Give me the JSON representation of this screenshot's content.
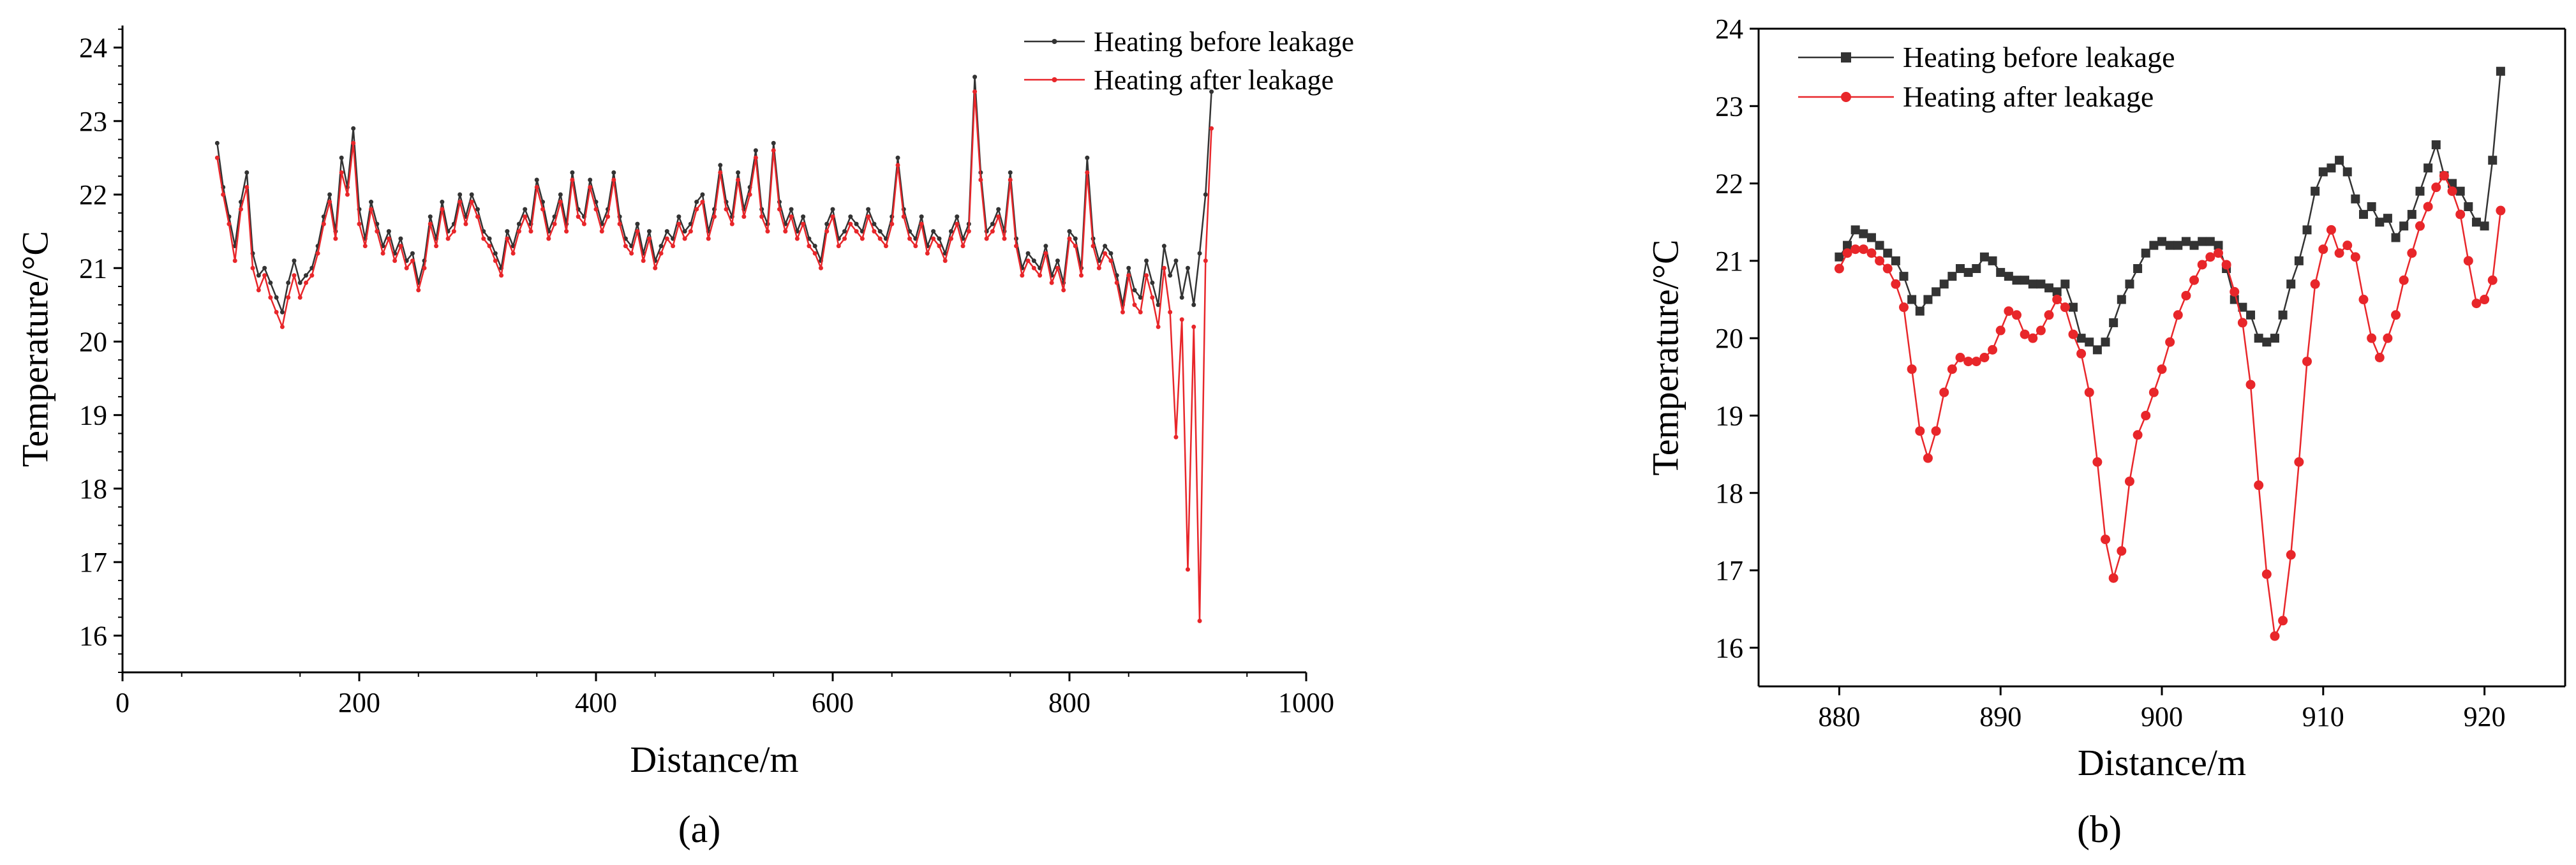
{
  "chart_data": [
    {
      "type": "line",
      "panel_label": "(a)",
      "xlabel": "Distance/m",
      "ylabel": "Temperature/°C",
      "xlim": [
        0,
        1000
      ],
      "ylim": [
        15.5,
        24.3
      ],
      "xticks": [
        0,
        200,
        400,
        600,
        800,
        1000
      ],
      "yticks": [
        16,
        17,
        18,
        19,
        20,
        21,
        22,
        23,
        24
      ],
      "legend_position": "top-right",
      "grid": false,
      "series": [
        {
          "name": "Heating before leakage",
          "color": "#333333",
          "x": [
            80,
            85,
            90,
            95,
            100,
            105,
            110,
            115,
            120,
            125,
            130,
            135,
            140,
            145,
            150,
            155,
            160,
            165,
            170,
            175,
            180,
            185,
            190,
            195,
            200,
            205,
            210,
            215,
            220,
            225,
            230,
            235,
            240,
            245,
            250,
            255,
            260,
            265,
            270,
            275,
            280,
            285,
            290,
            295,
            300,
            305,
            310,
            315,
            320,
            325,
            330,
            335,
            340,
            345,
            350,
            355,
            360,
            365,
            370,
            375,
            380,
            385,
            390,
            395,
            400,
            405,
            410,
            415,
            420,
            425,
            430,
            435,
            440,
            445,
            450,
            455,
            460,
            465,
            470,
            475,
            480,
            485,
            490,
            495,
            500,
            505,
            510,
            515,
            520,
            525,
            530,
            535,
            540,
            545,
            550,
            555,
            560,
            565,
            570,
            575,
            580,
            585,
            590,
            595,
            600,
            605,
            610,
            615,
            620,
            625,
            630,
            635,
            640,
            645,
            650,
            655,
            660,
            665,
            670,
            675,
            680,
            685,
            690,
            695,
            700,
            705,
            710,
            715,
            720,
            725,
            730,
            735,
            740,
            745,
            750,
            755,
            760,
            765,
            770,
            775,
            780,
            785,
            790,
            795,
            800,
            805,
            810,
            815,
            820,
            825,
            830,
            835,
            840,
            845,
            850,
            855,
            860,
            865,
            870,
            875,
            880,
            885,
            890,
            895,
            900,
            905,
            910,
            915,
            920
          ],
          "values": [
            22.7,
            22.1,
            21.7,
            21.3,
            21.9,
            22.3,
            21.2,
            20.9,
            21.0,
            20.8,
            20.6,
            20.4,
            20.8,
            21.1,
            20.8,
            20.9,
            21.0,
            21.3,
            21.7,
            22.0,
            21.5,
            22.5,
            22.1,
            22.9,
            21.8,
            21.4,
            21.9,
            21.6,
            21.3,
            21.5,
            21.2,
            21.4,
            21.1,
            21.2,
            20.8,
            21.1,
            21.7,
            21.4,
            21.9,
            21.5,
            21.6,
            22.0,
            21.7,
            22.0,
            21.8,
            21.5,
            21.4,
            21.2,
            21.0,
            21.5,
            21.3,
            21.6,
            21.8,
            21.6,
            22.2,
            21.9,
            21.5,
            21.7,
            22.0,
            21.6,
            22.3,
            21.8,
            21.7,
            22.2,
            21.9,
            21.6,
            21.8,
            22.3,
            21.7,
            21.4,
            21.3,
            21.6,
            21.2,
            21.5,
            21.1,
            21.3,
            21.5,
            21.4,
            21.7,
            21.5,
            21.6,
            21.9,
            22.0,
            21.5,
            21.8,
            22.4,
            21.9,
            21.7,
            22.3,
            21.8,
            22.1,
            22.6,
            21.8,
            21.6,
            22.7,
            21.9,
            21.6,
            21.8,
            21.5,
            21.7,
            21.4,
            21.3,
            21.1,
            21.6,
            21.8,
            21.4,
            21.5,
            21.7,
            21.6,
            21.5,
            21.8,
            21.6,
            21.5,
            21.4,
            21.7,
            22.5,
            21.8,
            21.5,
            21.4,
            21.7,
            21.3,
            21.5,
            21.4,
            21.2,
            21.5,
            21.7,
            21.4,
            21.6,
            23.6,
            22.3,
            21.5,
            21.6,
            21.8,
            21.5,
            22.3,
            21.4,
            21.0,
            21.2,
            21.1,
            21.0,
            21.3,
            20.9,
            21.1,
            20.8,
            21.5,
            21.4,
            21.0,
            22.5,
            21.4,
            21.1,
            21.3,
            21.2,
            20.9,
            20.5,
            21.0,
            20.7,
            20.6,
            21.1,
            20.8,
            20.5,
            21.3,
            20.9,
            21.1,
            20.6,
            21.0,
            20.5,
            21.2,
            22.0,
            23.4
          ]
        },
        {
          "name": "Heating after leakage",
          "color": "#e8262a",
          "x": [
            80,
            85,
            90,
            95,
            100,
            105,
            110,
            115,
            120,
            125,
            130,
            135,
            140,
            145,
            150,
            155,
            160,
            165,
            170,
            175,
            180,
            185,
            190,
            195,
            200,
            205,
            210,
            215,
            220,
            225,
            230,
            235,
            240,
            245,
            250,
            255,
            260,
            265,
            270,
            275,
            280,
            285,
            290,
            295,
            300,
            305,
            310,
            315,
            320,
            325,
            330,
            335,
            340,
            345,
            350,
            355,
            360,
            365,
            370,
            375,
            380,
            385,
            390,
            395,
            400,
            405,
            410,
            415,
            420,
            425,
            430,
            435,
            440,
            445,
            450,
            455,
            460,
            465,
            470,
            475,
            480,
            485,
            490,
            495,
            500,
            505,
            510,
            515,
            520,
            525,
            530,
            535,
            540,
            545,
            550,
            555,
            560,
            565,
            570,
            575,
            580,
            585,
            590,
            595,
            600,
            605,
            610,
            615,
            620,
            625,
            630,
            635,
            640,
            645,
            650,
            655,
            660,
            665,
            670,
            675,
            680,
            685,
            690,
            695,
            700,
            705,
            710,
            715,
            720,
            725,
            730,
            735,
            740,
            745,
            750,
            755,
            760,
            765,
            770,
            775,
            780,
            785,
            790,
            795,
            800,
            805,
            810,
            815,
            820,
            825,
            830,
            835,
            840,
            845,
            850,
            855,
            860,
            865,
            870,
            875,
            880,
            885,
            890,
            895,
            900,
            905,
            910,
            915,
            920
          ],
          "values": [
            22.5,
            22.0,
            21.6,
            21.1,
            21.8,
            22.1,
            21.0,
            20.7,
            20.9,
            20.6,
            20.4,
            20.2,
            20.6,
            20.9,
            20.6,
            20.8,
            20.9,
            21.2,
            21.6,
            21.9,
            21.4,
            22.3,
            22.0,
            22.7,
            21.6,
            21.3,
            21.8,
            21.5,
            21.2,
            21.4,
            21.1,
            21.3,
            21.0,
            21.1,
            20.7,
            21.0,
            21.6,
            21.3,
            21.8,
            21.4,
            21.5,
            21.9,
            21.6,
            21.9,
            21.7,
            21.4,
            21.3,
            21.1,
            20.9,
            21.4,
            21.2,
            21.5,
            21.7,
            21.5,
            22.1,
            21.8,
            21.4,
            21.6,
            21.9,
            21.5,
            22.2,
            21.7,
            21.6,
            22.1,
            21.8,
            21.5,
            21.7,
            22.2,
            21.6,
            21.3,
            21.2,
            21.5,
            21.1,
            21.4,
            21.0,
            21.2,
            21.4,
            21.3,
            21.6,
            21.4,
            21.5,
            21.8,
            21.9,
            21.4,
            21.7,
            22.3,
            21.8,
            21.6,
            22.2,
            21.7,
            22.0,
            22.5,
            21.7,
            21.5,
            22.6,
            21.8,
            21.5,
            21.7,
            21.4,
            21.6,
            21.3,
            21.2,
            21.0,
            21.5,
            21.7,
            21.3,
            21.4,
            21.6,
            21.5,
            21.4,
            21.7,
            21.5,
            21.4,
            21.3,
            21.6,
            22.4,
            21.7,
            21.4,
            21.3,
            21.6,
            21.2,
            21.4,
            21.3,
            21.1,
            21.4,
            21.6,
            21.3,
            21.5,
            23.4,
            22.2,
            21.4,
            21.5,
            21.7,
            21.4,
            22.2,
            21.3,
            20.9,
            21.1,
            21.0,
            20.9,
            21.2,
            20.8,
            21.0,
            20.7,
            21.4,
            21.3,
            20.9,
            22.3,
            21.3,
            21.0,
            21.2,
            21.1,
            20.8,
            20.4,
            20.9,
            20.5,
            20.4,
            20.9,
            20.6,
            20.2,
            21.0,
            20.4,
            18.7,
            20.3,
            16.9,
            20.2,
            16.2,
            21.1,
            22.9
          ]
        }
      ]
    },
    {
      "type": "line",
      "panel_label": "(b)",
      "xlabel": "Distance/m",
      "ylabel": "Temperature/°C",
      "xlim": [
        875,
        925
      ],
      "ylim": [
        15.5,
        24
      ],
      "xticks": [
        880,
        890,
        900,
        910,
        920
      ],
      "yticks": [
        16,
        17,
        18,
        19,
        20,
        21,
        22,
        23,
        24
      ],
      "legend_position": "top-left",
      "grid": false,
      "series": [
        {
          "name": "Heating before leakage",
          "color": "#333333",
          "x": [
            880,
            880.5,
            881,
            881.5,
            882,
            882.5,
            883,
            883.5,
            884,
            884.5,
            885,
            885.5,
            886,
            886.5,
            887,
            887.5,
            888,
            888.5,
            889,
            889.5,
            890,
            890.5,
            891,
            891.5,
            892,
            892.5,
            893,
            893.5,
            894,
            894.5,
            895,
            895.5,
            896,
            896.5,
            897,
            897.5,
            898,
            898.5,
            899,
            899.5,
            900,
            900.5,
            901,
            901.5,
            902,
            902.5,
            903,
            903.5,
            904,
            904.5,
            905,
            905.5,
            906,
            906.5,
            907,
            907.5,
            908,
            908.5,
            909,
            909.5,
            910,
            910.5,
            911,
            911.5,
            912,
            912.5,
            913,
            913.5,
            914,
            914.5,
            915,
            915.5,
            916,
            916.5,
            917,
            917.5,
            918,
            918.5,
            919,
            919.5,
            920,
            920.5,
            921
          ],
          "values": [
            21.05,
            21.2,
            21.4,
            21.35,
            21.3,
            21.2,
            21.1,
            21.0,
            20.8,
            20.5,
            20.35,
            20.5,
            20.6,
            20.7,
            20.8,
            20.9,
            20.85,
            20.9,
            21.05,
            21.0,
            20.85,
            20.8,
            20.75,
            20.75,
            20.7,
            20.7,
            20.65,
            20.6,
            20.7,
            20.4,
            20.0,
            19.95,
            19.85,
            19.95,
            20.2,
            20.5,
            20.7,
            20.9,
            21.1,
            21.2,
            21.25,
            21.2,
            21.2,
            21.25,
            21.2,
            21.25,
            21.25,
            21.2,
            20.9,
            20.5,
            20.4,
            20.3,
            20.0,
            19.95,
            20.0,
            20.3,
            20.7,
            21.0,
            21.4,
            21.9,
            22.15,
            22.2,
            22.3,
            22.15,
            21.8,
            21.6,
            21.7,
            21.5,
            21.55,
            21.3,
            21.45,
            21.6,
            21.9,
            22.2,
            22.5,
            22.1,
            22.0,
            21.9,
            21.7,
            21.5,
            21.45,
            22.3,
            23.45
          ]
        },
        {
          "name": "Heating after leakage",
          "color": "#e8262a",
          "x": [
            880,
            880.5,
            881,
            881.5,
            882,
            882.5,
            883,
            883.5,
            884,
            884.5,
            885,
            885.5,
            886,
            886.5,
            887,
            887.5,
            888,
            888.5,
            889,
            889.5,
            890,
            890.5,
            891,
            891.5,
            892,
            892.5,
            893,
            893.5,
            894,
            894.5,
            895,
            895.5,
            896,
            896.5,
            897,
            897.5,
            898,
            898.5,
            899,
            899.5,
            900,
            900.5,
            901,
            901.5,
            902,
            902.5,
            903,
            903.5,
            904,
            904.5,
            905,
            905.5,
            906,
            906.5,
            907,
            907.5,
            908,
            908.5,
            909,
            909.5,
            910,
            910.5,
            911,
            911.5,
            912,
            912.5,
            913,
            913.5,
            914,
            914.5,
            915,
            915.5,
            916,
            916.5,
            917,
            917.5,
            918,
            918.5,
            919,
            919.5,
            920,
            920.5,
            921
          ],
          "values": [
            20.9,
            21.1,
            21.15,
            21.15,
            21.1,
            21.0,
            20.9,
            20.7,
            20.4,
            19.6,
            18.8,
            18.45,
            18.8,
            19.3,
            19.6,
            19.75,
            19.7,
            19.7,
            19.75,
            19.85,
            20.1,
            20.35,
            20.3,
            20.05,
            20.0,
            20.1,
            20.3,
            20.5,
            20.4,
            20.05,
            19.8,
            19.3,
            18.4,
            17.4,
            16.9,
            17.25,
            18.15,
            18.75,
            19.0,
            19.3,
            19.6,
            19.95,
            20.3,
            20.55,
            20.75,
            20.95,
            21.05,
            21.1,
            20.95,
            20.6,
            20.2,
            19.4,
            18.1,
            16.95,
            16.15,
            16.35,
            17.2,
            18.4,
            19.7,
            20.7,
            21.15,
            21.4,
            21.1,
            21.2,
            21.05,
            20.5,
            20.0,
            19.75,
            20.0,
            20.3,
            20.75,
            21.1,
            21.45,
            21.7,
            21.95,
            22.1,
            21.9,
            21.6,
            21.0,
            20.45,
            20.5,
            20.75,
            21.65
          ]
        }
      ]
    }
  ]
}
